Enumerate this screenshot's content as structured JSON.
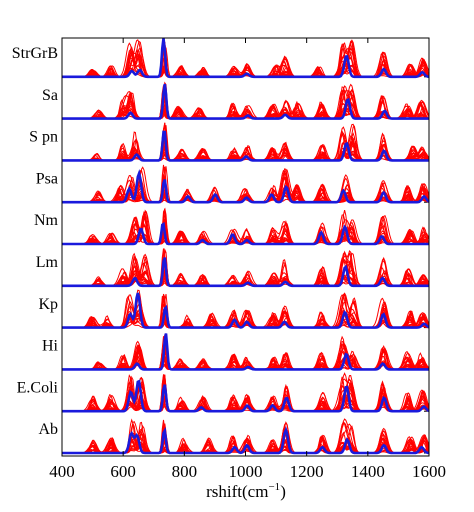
{
  "chart_data": {
    "type": "line",
    "title": "",
    "xlabel": "rshift(cm",
    "xlabel_sup": "−1",
    "xlabel_close": ")",
    "ylabel": "",
    "xlim": [
      400,
      1600
    ],
    "xticks": [
      {
        "value": 400,
        "label": "400"
      },
      {
        "value": 600,
        "label": "600"
      },
      {
        "value": 800,
        "label": "800"
      },
      {
        "value": 1000,
        "label": "1000"
      },
      {
        "value": 1200,
        "label": "1200"
      },
      {
        "value": 1400,
        "label": "1400"
      },
      {
        "value": 1600,
        "label": "1600"
      }
    ],
    "grid": false,
    "legend": "none",
    "colors": {
      "samples": "#ff0000",
      "mean": "#1a1adc"
    },
    "rows": [
      {
        "label": "StrGrB",
        "mean_peaks": [
          [
            625,
            0.15
          ],
          [
            650,
            0.18
          ],
          [
            735,
            1.0
          ],
          [
            1005,
            0.08
          ],
          [
            1330,
            0.55
          ],
          [
            1450,
            0.2
          ],
          [
            1580,
            0.12
          ]
        ],
        "red_peaks": [
          [
            500,
            0.2
          ],
          [
            560,
            0.3
          ],
          [
            625,
            0.9
          ],
          [
            650,
            1.0
          ],
          [
            735,
            1.0
          ],
          [
            790,
            0.3
          ],
          [
            860,
            0.25
          ],
          [
            960,
            0.3
          ],
          [
            1005,
            0.35
          ],
          [
            1100,
            0.3
          ],
          [
            1130,
            0.55
          ],
          [
            1240,
            0.3
          ],
          [
            1320,
            0.9
          ],
          [
            1345,
            0.95
          ],
          [
            1450,
            0.65
          ],
          [
            1540,
            0.4
          ],
          [
            1580,
            0.5
          ]
        ]
      },
      {
        "label": "Sa",
        "mean_peaks": [
          [
            625,
            0.15
          ],
          [
            735,
            0.9
          ],
          [
            1005,
            0.08
          ],
          [
            1130,
            0.1
          ],
          [
            1330,
            0.5
          ],
          [
            1450,
            0.2
          ]
        ],
        "red_peaks": [
          [
            520,
            0.25
          ],
          [
            600,
            0.5
          ],
          [
            625,
            0.8
          ],
          [
            735,
            1.0
          ],
          [
            780,
            0.35
          ],
          [
            850,
            0.3
          ],
          [
            960,
            0.4
          ],
          [
            1005,
            0.35
          ],
          [
            1090,
            0.4
          ],
          [
            1130,
            0.6
          ],
          [
            1170,
            0.45
          ],
          [
            1250,
            0.5
          ],
          [
            1320,
            0.95
          ],
          [
            1345,
            0.9
          ],
          [
            1450,
            0.7
          ],
          [
            1530,
            0.45
          ],
          [
            1575,
            0.5
          ]
        ]
      },
      {
        "label": "S pn",
        "mean_peaks": [
          [
            640,
            0.15
          ],
          [
            735,
            0.8
          ],
          [
            1005,
            0.1
          ],
          [
            1330,
            0.45
          ],
          [
            1450,
            0.25
          ]
        ],
        "red_peaks": [
          [
            510,
            0.2
          ],
          [
            600,
            0.45
          ],
          [
            640,
            0.8
          ],
          [
            735,
            1.0
          ],
          [
            790,
            0.3
          ],
          [
            860,
            0.35
          ],
          [
            960,
            0.35
          ],
          [
            1005,
            0.4
          ],
          [
            1090,
            0.35
          ],
          [
            1130,
            0.5
          ],
          [
            1250,
            0.45
          ],
          [
            1320,
            0.9
          ],
          [
            1350,
            0.95
          ],
          [
            1450,
            0.7
          ],
          [
            1550,
            0.45
          ],
          [
            1580,
            0.35
          ]
        ]
      },
      {
        "label": "Psa",
        "mean_peaks": [
          [
            620,
            0.35
          ],
          [
            650,
            0.75
          ],
          [
            735,
            0.6
          ],
          [
            810,
            0.15
          ],
          [
            900,
            0.2
          ],
          [
            1000,
            0.12
          ],
          [
            1090,
            0.2
          ],
          [
            1130,
            0.4
          ],
          [
            1320,
            0.3
          ],
          [
            1450,
            0.25
          ],
          [
            1580,
            0.15
          ]
        ],
        "red_peaks": [
          [
            520,
            0.3
          ],
          [
            590,
            0.45
          ],
          [
            625,
            0.75
          ],
          [
            660,
            0.95
          ],
          [
            735,
            1.0
          ],
          [
            810,
            0.4
          ],
          [
            900,
            0.45
          ],
          [
            1000,
            0.4
          ],
          [
            1090,
            0.45
          ],
          [
            1130,
            0.9
          ],
          [
            1170,
            0.5
          ],
          [
            1250,
            0.5
          ],
          [
            1330,
            0.85
          ],
          [
            1450,
            0.65
          ],
          [
            1530,
            0.45
          ],
          [
            1580,
            0.5
          ]
        ]
      },
      {
        "label": "Nm",
        "mean_peaks": [
          [
            660,
            0.4
          ],
          [
            735,
            0.55
          ],
          [
            860,
            0.1
          ],
          [
            960,
            0.25
          ],
          [
            1005,
            0.1
          ],
          [
            1250,
            0.3
          ],
          [
            1330,
            0.45
          ],
          [
            1450,
            0.2
          ]
        ],
        "red_peaks": [
          [
            500,
            0.25
          ],
          [
            560,
            0.3
          ],
          [
            640,
            0.85
          ],
          [
            670,
            0.9
          ],
          [
            735,
            1.0
          ],
          [
            790,
            0.4
          ],
          [
            860,
            0.4
          ],
          [
            960,
            0.45
          ],
          [
            1005,
            0.4
          ],
          [
            1090,
            0.45
          ],
          [
            1130,
            0.6
          ],
          [
            1250,
            0.6
          ],
          [
            1320,
            0.9
          ],
          [
            1345,
            0.85
          ],
          [
            1450,
            0.75
          ],
          [
            1540,
            0.4
          ],
          [
            1585,
            0.45
          ]
        ]
      },
      {
        "label": "Lm",
        "mean_peaks": [
          [
            640,
            0.2
          ],
          [
            735,
            0.75
          ],
          [
            1005,
            0.08
          ],
          [
            1130,
            0.1
          ],
          [
            1330,
            0.5
          ],
          [
            1450,
            0.2
          ]
        ],
        "red_peaks": [
          [
            520,
            0.25
          ],
          [
            600,
            0.45
          ],
          [
            640,
            0.9
          ],
          [
            670,
            0.85
          ],
          [
            735,
            1.0
          ],
          [
            790,
            0.35
          ],
          [
            860,
            0.3
          ],
          [
            960,
            0.45
          ],
          [
            1005,
            0.4
          ],
          [
            1090,
            0.35
          ],
          [
            1130,
            0.7
          ],
          [
            1250,
            0.5
          ],
          [
            1320,
            0.95
          ],
          [
            1345,
            0.9
          ],
          [
            1450,
            0.75
          ],
          [
            1530,
            0.45
          ],
          [
            1580,
            0.4
          ]
        ]
      },
      {
        "label": "Kp",
        "mean_peaks": [
          [
            620,
            0.35
          ],
          [
            650,
            0.9
          ],
          [
            735,
            0.55
          ],
          [
            960,
            0.2
          ],
          [
            1005,
            0.15
          ],
          [
            1130,
            0.15
          ],
          [
            1330,
            0.4
          ],
          [
            1450,
            0.35
          ],
          [
            1580,
            0.1
          ]
        ],
        "red_peaks": [
          [
            500,
            0.3
          ],
          [
            545,
            0.35
          ],
          [
            620,
            0.9
          ],
          [
            650,
            1.0
          ],
          [
            735,
            1.0
          ],
          [
            810,
            0.4
          ],
          [
            890,
            0.4
          ],
          [
            960,
            0.45
          ],
          [
            1005,
            0.45
          ],
          [
            1090,
            0.4
          ],
          [
            1130,
            0.6
          ],
          [
            1250,
            0.5
          ],
          [
            1320,
            0.9
          ],
          [
            1350,
            0.85
          ],
          [
            1450,
            0.8
          ],
          [
            1540,
            0.45
          ],
          [
            1580,
            0.5
          ]
        ]
      },
      {
        "label": "Hi",
        "mean_peaks": [
          [
            650,
            0.15
          ],
          [
            735,
            0.95
          ],
          [
            1005,
            0.06
          ],
          [
            1330,
            0.4
          ],
          [
            1450,
            0.15
          ]
        ],
        "red_peaks": [
          [
            520,
            0.2
          ],
          [
            600,
            0.4
          ],
          [
            650,
            0.8
          ],
          [
            735,
            1.0
          ],
          [
            790,
            0.3
          ],
          [
            860,
            0.3
          ],
          [
            960,
            0.4
          ],
          [
            1005,
            0.35
          ],
          [
            1090,
            0.35
          ],
          [
            1130,
            0.45
          ],
          [
            1250,
            0.45
          ],
          [
            1320,
            0.85
          ],
          [
            1350,
            0.8
          ],
          [
            1450,
            0.65
          ],
          [
            1530,
            0.5
          ],
          [
            1575,
            0.45
          ]
        ]
      },
      {
        "label": "E.Coli",
        "mean_peaks": [
          [
            625,
            0.5
          ],
          [
            650,
            0.8
          ],
          [
            735,
            0.7
          ],
          [
            860,
            0.1
          ],
          [
            1005,
            0.15
          ],
          [
            1090,
            0.15
          ],
          [
            1130,
            0.35
          ],
          [
            1330,
            0.65
          ],
          [
            1450,
            0.35
          ],
          [
            1580,
            0.12
          ]
        ],
        "red_peaks": [
          [
            500,
            0.4
          ],
          [
            560,
            0.45
          ],
          [
            625,
            0.95
          ],
          [
            660,
            1.0
          ],
          [
            735,
            1.0
          ],
          [
            790,
            0.4
          ],
          [
            860,
            0.4
          ],
          [
            960,
            0.45
          ],
          [
            1005,
            0.45
          ],
          [
            1090,
            0.45
          ],
          [
            1130,
            0.8
          ],
          [
            1250,
            0.55
          ],
          [
            1320,
            1.0
          ],
          [
            1345,
            0.95
          ],
          [
            1450,
            0.85
          ],
          [
            1530,
            0.5
          ],
          [
            1580,
            0.55
          ]
        ]
      },
      {
        "label": "Ab",
        "mean_peaks": [
          [
            630,
            0.5
          ],
          [
            650,
            0.45
          ],
          [
            735,
            0.6
          ],
          [
            960,
            0.15
          ],
          [
            1005,
            0.2
          ],
          [
            1130,
            0.6
          ],
          [
            1250,
            0.15
          ],
          [
            1330,
            0.35
          ],
          [
            1450,
            0.2
          ],
          [
            1580,
            0.15
          ]
        ],
        "red_peaks": [
          [
            500,
            0.35
          ],
          [
            560,
            0.4
          ],
          [
            630,
            0.9
          ],
          [
            660,
            0.85
          ],
          [
            735,
            1.0
          ],
          [
            800,
            0.4
          ],
          [
            880,
            0.4
          ],
          [
            960,
            0.45
          ],
          [
            1005,
            0.5
          ],
          [
            1090,
            0.4
          ],
          [
            1130,
            0.85
          ],
          [
            1250,
            0.5
          ],
          [
            1320,
            0.85
          ],
          [
            1345,
            0.8
          ],
          [
            1450,
            0.65
          ],
          [
            1540,
            0.45
          ],
          [
            1585,
            0.5
          ]
        ]
      }
    ]
  }
}
